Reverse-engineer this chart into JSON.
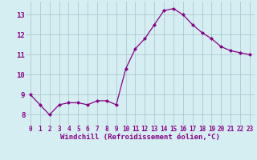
{
  "x": [
    0,
    1,
    2,
    3,
    4,
    5,
    6,
    7,
    8,
    9,
    10,
    11,
    12,
    13,
    14,
    15,
    16,
    17,
    18,
    19,
    20,
    21,
    22,
    23
  ],
  "y": [
    9.0,
    8.5,
    8.0,
    8.5,
    8.6,
    8.6,
    8.5,
    8.7,
    8.7,
    8.5,
    10.3,
    11.3,
    11.8,
    12.5,
    13.2,
    13.3,
    13.0,
    12.5,
    12.1,
    11.8,
    11.4,
    11.2,
    11.1,
    11.0
  ],
  "line_color": "#880088",
  "marker": "D",
  "marker_size": 2.0,
  "line_width": 0.9,
  "xlabel": "Windchill (Refroidissement éolien,°C)",
  "xlabel_fontsize": 6.5,
  "ylabel_ticks": [
    8,
    9,
    10,
    11,
    12,
    13
  ],
  "xtick_labels": [
    "0",
    "1",
    "2",
    "3",
    "4",
    "5",
    "6",
    "7",
    "8",
    "9",
    "10",
    "11",
    "12",
    "13",
    "14",
    "15",
    "16",
    "17",
    "18",
    "19",
    "20",
    "21",
    "22",
    "23"
  ],
  "ylim": [
    7.5,
    13.65
  ],
  "xlim": [
    -0.5,
    23.5
  ],
  "bg_color": "#d5eef2",
  "grid_color": "#aec9cf",
  "tick_color": "#880088",
  "tick_fontsize": 5.5
}
